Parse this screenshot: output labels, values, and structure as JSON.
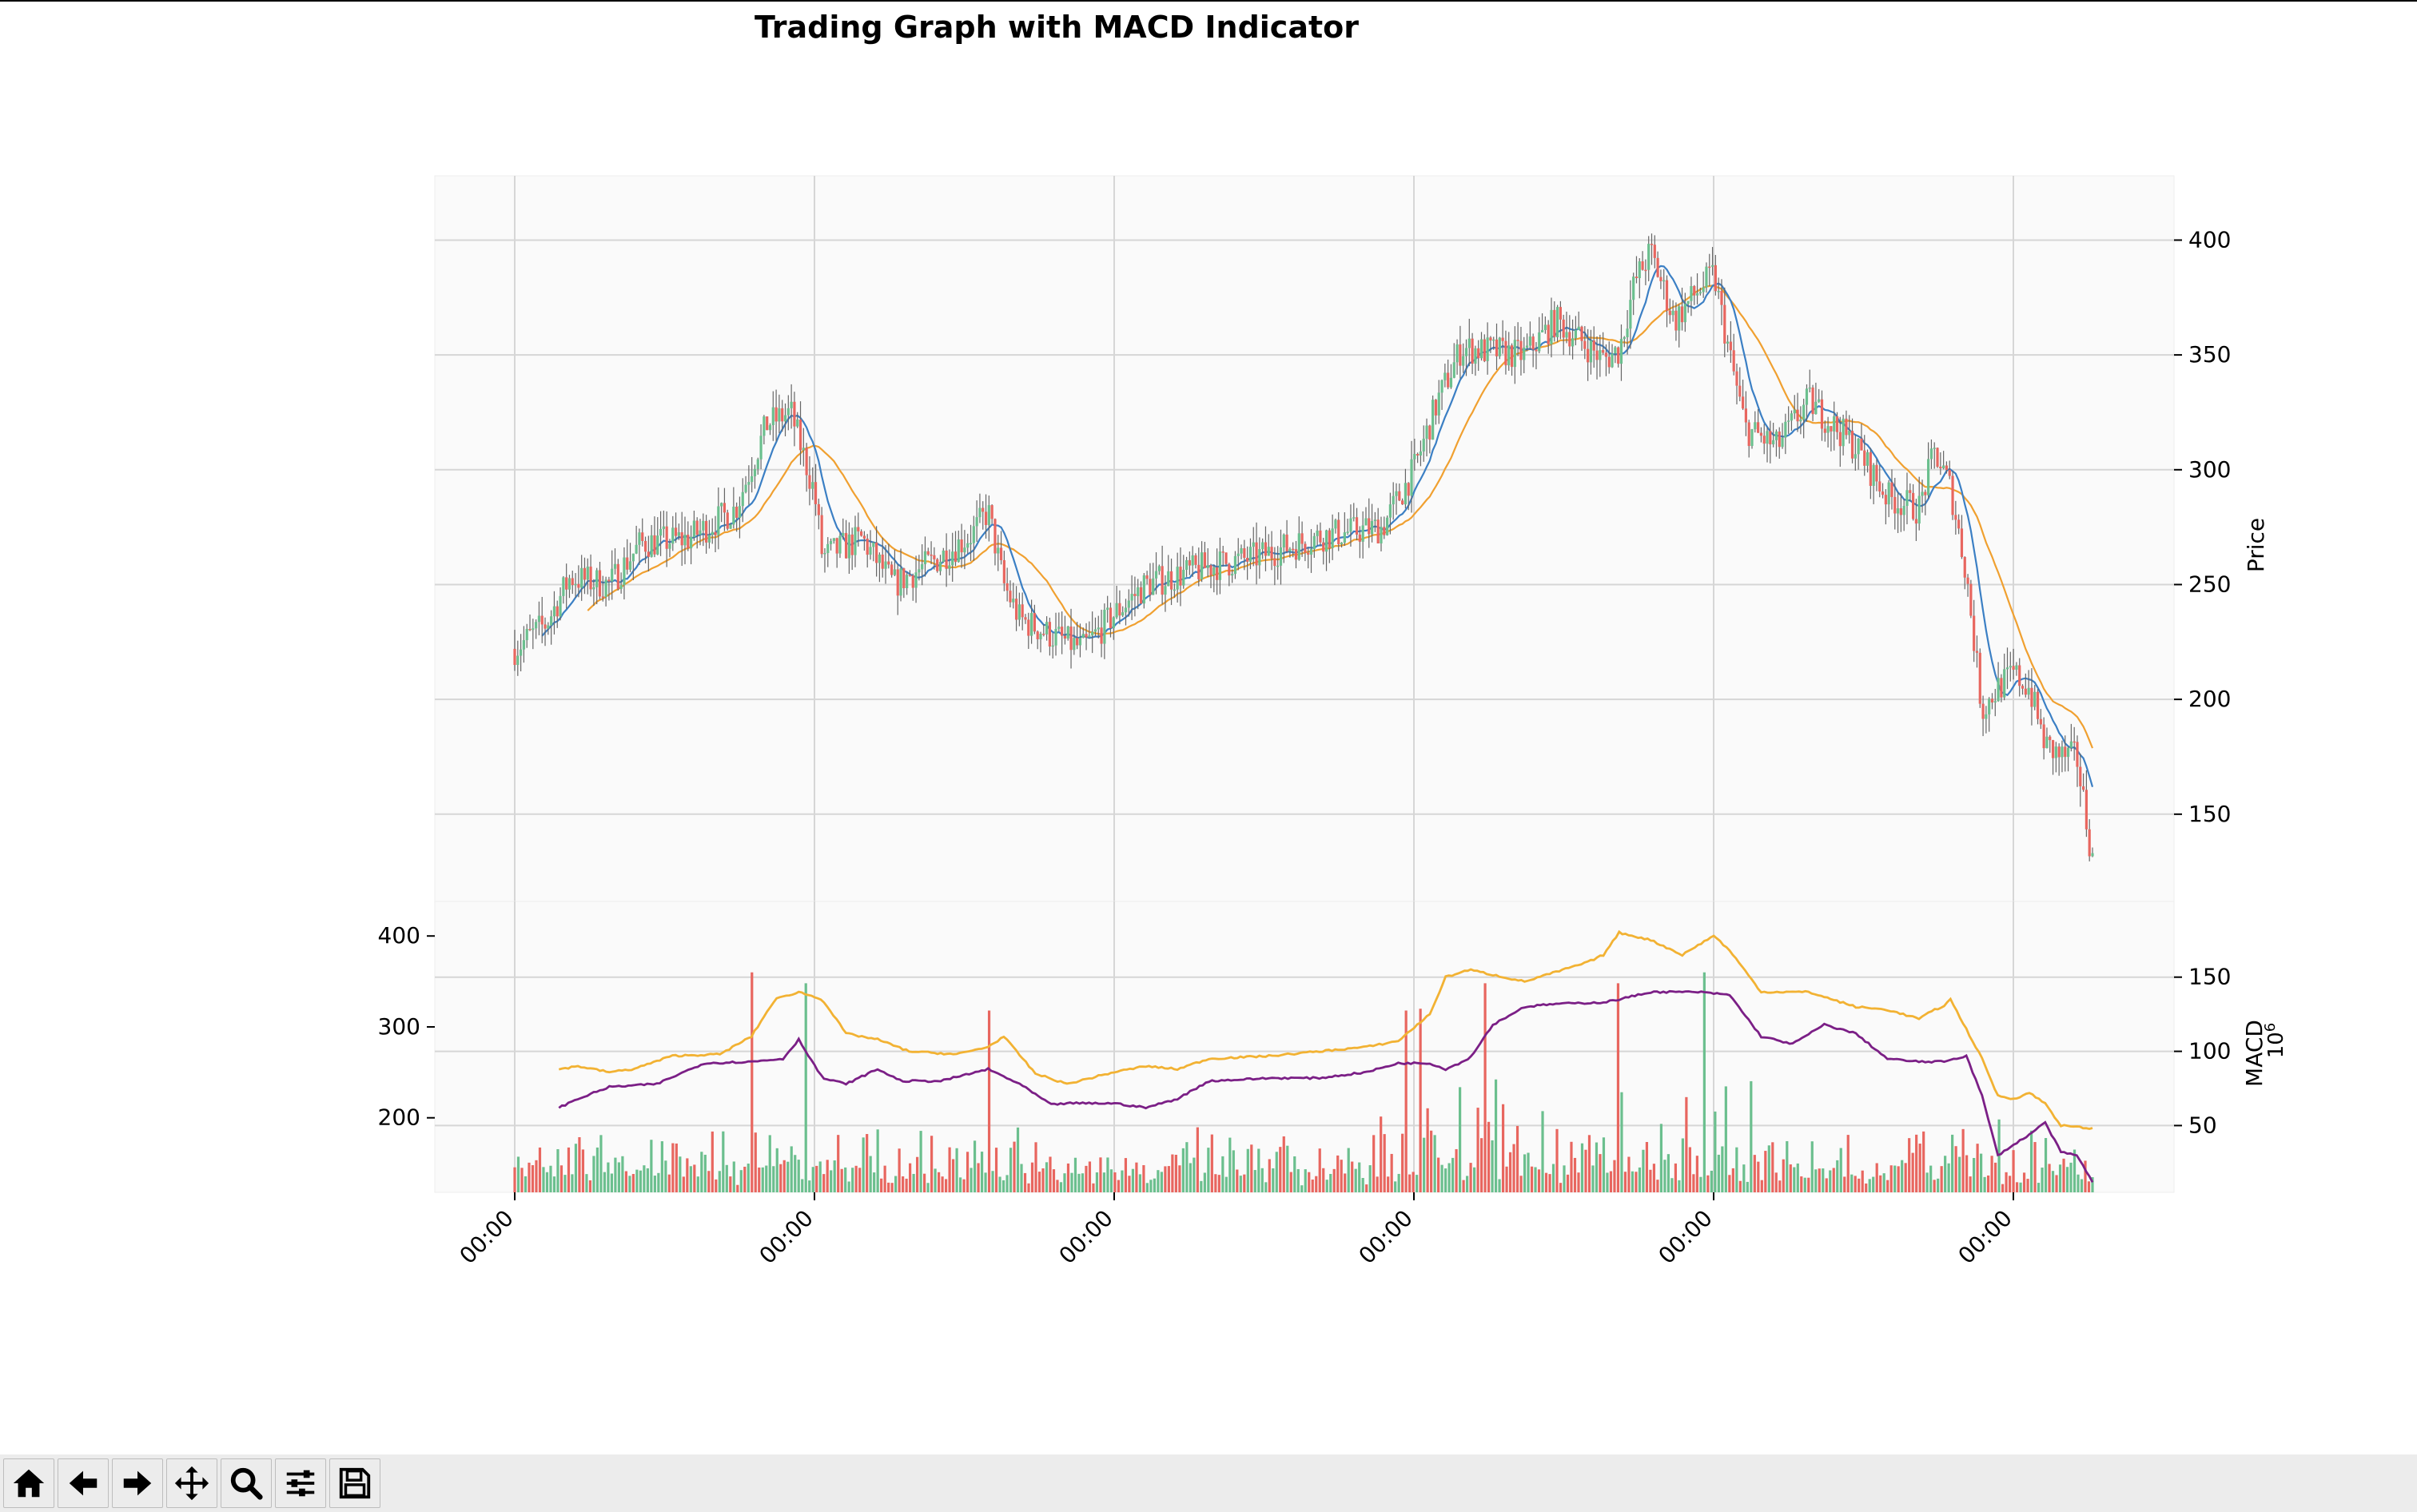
{
  "window": {
    "title": "Trading Graph with MACD Indicator"
  },
  "toolbar": {
    "buttons": [
      {
        "name": "home-button",
        "icon": "home-icon",
        "tooltip": "Reset original view"
      },
      {
        "name": "back-button",
        "icon": "arrow-left-icon",
        "tooltip": "Back to previous view"
      },
      {
        "name": "forward-button",
        "icon": "arrow-right-icon",
        "tooltip": "Forward to next view"
      },
      {
        "name": "pan-button",
        "icon": "move-icon",
        "tooltip": "Pan axes"
      },
      {
        "name": "zoom-button",
        "icon": "zoom-icon",
        "tooltip": "Zoom to rectangle"
      },
      {
        "name": "configure-button",
        "icon": "sliders-icon",
        "tooltip": "Configure subplots"
      },
      {
        "name": "save-button",
        "icon": "save-icon",
        "tooltip": "Save the figure"
      }
    ]
  },
  "colors": {
    "up": "#6bbf8e",
    "down": "#e8665f",
    "fast_line": "#3b7fc4",
    "slow_line": "#f0a030",
    "macd_line": "#f2b233",
    "signal_line": "#7b1f86",
    "axes_bg": "#fafafa",
    "grid": "#d6d6d6"
  },
  "chart_data": [
    {
      "type": "line",
      "name": "price-panel",
      "title": "Trading Graph with MACD Indicator",
      "ylabel": "Price",
      "ylim": [
        112,
        428
      ],
      "yticks": [
        150,
        200,
        250,
        300,
        350,
        400
      ],
      "xticks": [
        "00:00",
        "00:00",
        "00:00",
        "00:00",
        "00:00",
        "00:00"
      ],
      "x_range": [
        0,
        1000
      ],
      "price_anchors": [
        [
          0,
          222
        ],
        [
          20,
          233
        ],
        [
          35,
          253
        ],
        [
          60,
          250
        ],
        [
          80,
          268
        ],
        [
          110,
          270
        ],
        [
          140,
          283
        ],
        [
          160,
          320
        ],
        [
          175,
          325
        ],
        [
          190,
          290
        ],
        [
          195,
          262
        ],
        [
          220,
          270
        ],
        [
          240,
          250
        ],
        [
          270,
          262
        ],
        [
          290,
          272
        ],
        [
          300,
          282
        ],
        [
          310,
          250
        ],
        [
          320,
          235
        ],
        [
          340,
          228
        ],
        [
          360,
          222
        ],
        [
          380,
          237
        ],
        [
          400,
          250
        ],
        [
          440,
          258
        ],
        [
          470,
          262
        ],
        [
          510,
          271
        ],
        [
          550,
          275
        ],
        [
          570,
          300
        ],
        [
          585,
          330
        ],
        [
          600,
          353
        ],
        [
          640,
          350
        ],
        [
          660,
          365
        ],
        [
          690,
          348
        ],
        [
          700,
          352
        ],
        [
          710,
          382
        ],
        [
          720,
          395
        ],
        [
          735,
          365
        ],
        [
          750,
          378
        ],
        [
          760,
          385
        ],
        [
          770,
          350
        ],
        [
          780,
          318
        ],
        [
          800,
          310
        ],
        [
          820,
          330
        ],
        [
          850,
          310
        ],
        [
          870,
          288
        ],
        [
          890,
          283
        ],
        [
          900,
          308
        ],
        [
          910,
          292
        ],
        [
          920,
          255
        ],
        [
          930,
          195
        ],
        [
          940,
          205
        ],
        [
          950,
          211
        ],
        [
          960,
          205
        ],
        [
          970,
          180
        ],
        [
          980,
          175
        ],
        [
          990,
          175
        ],
        [
          1000,
          130
        ]
      ],
      "series": [
        {
          "name": "candles",
          "kind": "candlestick"
        },
        {
          "name": "fast-ma",
          "kind": "line",
          "window": 10
        },
        {
          "name": "slow-ma",
          "kind": "line",
          "window": 25
        }
      ]
    },
    {
      "type": "bar",
      "name": "volume-macd-panel",
      "ylabel": "MACD",
      "ylabel_exponent": "10^6",
      "left_yticks": [
        200,
        300,
        400
      ],
      "left_ylim": [
        118,
        438
      ],
      "right_yticks": [
        50,
        100,
        150
      ],
      "right_ylim": [
        5,
        201
      ],
      "macd_anchors": [
        [
          28,
          88
        ],
        [
          40,
          90
        ],
        [
          60,
          86
        ],
        [
          75,
          88
        ],
        [
          100,
          97
        ],
        [
          130,
          98
        ],
        [
          150,
          110
        ],
        [
          165,
          135
        ],
        [
          180,
          140
        ],
        [
          195,
          135
        ],
        [
          210,
          112
        ],
        [
          230,
          108
        ],
        [
          250,
          100
        ],
        [
          280,
          98
        ],
        [
          300,
          103
        ],
        [
          310,
          110
        ],
        [
          330,
          85
        ],
        [
          350,
          78
        ],
        [
          380,
          86
        ],
        [
          400,
          90
        ],
        [
          420,
          88
        ],
        [
          440,
          95
        ],
        [
          480,
          97
        ],
        [
          510,
          100
        ],
        [
          540,
          103
        ],
        [
          560,
          107
        ],
        [
          580,
          125
        ],
        [
          590,
          150
        ],
        [
          605,
          155
        ],
        [
          640,
          147
        ],
        [
          680,
          160
        ],
        [
          690,
          165
        ],
        [
          700,
          180
        ],
        [
          720,
          175
        ],
        [
          740,
          165
        ],
        [
          760,
          178
        ],
        [
          770,
          168
        ],
        [
          790,
          140
        ],
        [
          820,
          140
        ],
        [
          850,
          130
        ],
        [
          870,
          128
        ],
        [
          890,
          122
        ],
        [
          900,
          128
        ],
        [
          905,
          130
        ],
        [
          910,
          135
        ],
        [
          930,
          95
        ],
        [
          940,
          70
        ],
        [
          950,
          68
        ],
        [
          960,
          72
        ],
        [
          970,
          65
        ],
        [
          980,
          50
        ],
        [
          1000,
          48
        ]
      ],
      "signal_anchors": [
        [
          28,
          62
        ],
        [
          40,
          68
        ],
        [
          60,
          76
        ],
        [
          90,
          78
        ],
        [
          120,
          92
        ],
        [
          150,
          93
        ],
        [
          170,
          95
        ],
        [
          180,
          108
        ],
        [
          195,
          82
        ],
        [
          210,
          78
        ],
        [
          230,
          88
        ],
        [
          245,
          80
        ],
        [
          270,
          80
        ],
        [
          300,
          88
        ],
        [
          320,
          78
        ],
        [
          340,
          64
        ],
        [
          350,
          65
        ],
        [
          380,
          65
        ],
        [
          400,
          62
        ],
        [
          420,
          68
        ],
        [
          440,
          80
        ],
        [
          480,
          82
        ],
        [
          510,
          82
        ],
        [
          540,
          86
        ],
        [
          560,
          92
        ],
        [
          580,
          92
        ],
        [
          590,
          88
        ],
        [
          605,
          95
        ],
        [
          620,
          118
        ],
        [
          640,
          130
        ],
        [
          660,
          132
        ],
        [
          690,
          133
        ],
        [
          700,
          135
        ],
        [
          720,
          140
        ],
        [
          750,
          140
        ],
        [
          770,
          138
        ],
        [
          790,
          110
        ],
        [
          810,
          105
        ],
        [
          830,
          118
        ],
        [
          850,
          112
        ],
        [
          870,
          95
        ],
        [
          890,
          93
        ],
        [
          905,
          93
        ],
        [
          920,
          97
        ],
        [
          930,
          70
        ],
        [
          940,
          30
        ],
        [
          960,
          44
        ],
        [
          970,
          52
        ],
        [
          980,
          32
        ],
        [
          990,
          30
        ],
        [
          1000,
          12
        ]
      ],
      "volume_spikes": [
        [
          150,
          360
        ],
        [
          185,
          348
        ],
        [
          300,
          318
        ],
        [
          565,
          318
        ],
        [
          575,
          320
        ],
        [
          615,
          348
        ],
        [
          700,
          348
        ],
        [
          755,
          360
        ]
      ]
    }
  ]
}
